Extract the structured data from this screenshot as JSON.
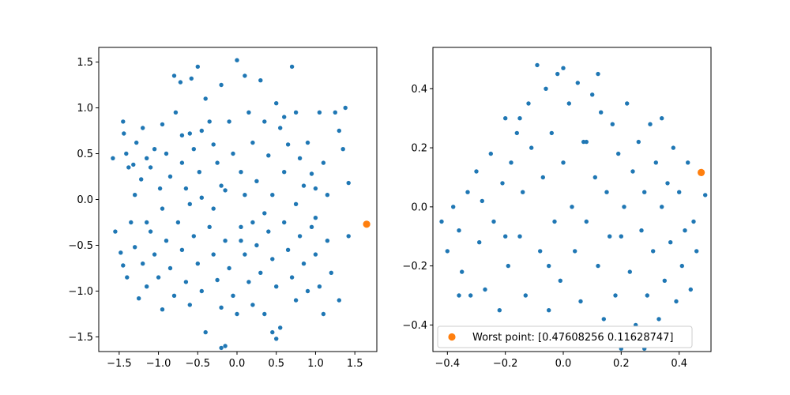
{
  "chart_data": [
    {
      "type": "scatter",
      "title": "",
      "xlabel": "",
      "ylabel": "",
      "xlim": [
        -1.76,
        1.78
      ],
      "ylim": [
        -1.66,
        1.66
      ],
      "xticks": [
        -1.5,
        -1.0,
        -0.5,
        0.0,
        0.5,
        1.0,
        1.5
      ],
      "yticks": [
        -1.5,
        -1.0,
        -0.5,
        0.0,
        0.5,
        1.0,
        1.5
      ],
      "xtick_labels": [
        "−1.5",
        "−1.0",
        "−0.5",
        "0.0",
        "0.5",
        "1.0",
        "1.5"
      ],
      "ytick_labels": [
        "−1.5",
        "−1.0",
        "−0.5",
        "0.0",
        "0.5",
        "1.0",
        "1.5"
      ],
      "series": [
        {
          "color": "#1f77b4",
          "marker_size": "small",
          "points": [
            [
              -1.58,
              0.45
            ],
            [
              -1.45,
              0.85
            ],
            [
              -1.44,
              0.72
            ],
            [
              -1.41,
              0.5
            ],
            [
              -1.38,
              0.35
            ],
            [
              -1.32,
              0.38
            ],
            [
              -1.3,
              0.05
            ],
            [
              -1.28,
              0.62
            ],
            [
              -1.22,
              0.22
            ],
            [
              -1.2,
              0.78
            ],
            [
              -1.15,
              0.45
            ],
            [
              -1.1,
              0.35
            ],
            [
              -1.05,
              0.55
            ],
            [
              -0.98,
              0.12
            ],
            [
              -0.95,
              0.82
            ],
            [
              -0.9,
              0.5
            ],
            [
              -0.85,
              0.25
            ],
            [
              -0.8,
              1.35
            ],
            [
              -0.78,
              0.95
            ],
            [
              -0.72,
              1.28
            ],
            [
              -0.7,
              0.4
            ],
            [
              -0.65,
              0.12
            ],
            [
              -0.6,
              0.72
            ],
            [
              -0.58,
              1.32
            ],
            [
              -0.55,
              0.55
            ],
            [
              -0.5,
              1.45
            ],
            [
              -0.48,
              0.3
            ],
            [
              -0.45,
              0.02
            ],
            [
              -0.4,
              1.1
            ],
            [
              -0.35,
              0.85
            ],
            [
              -0.3,
              0.6
            ],
            [
              -0.25,
              0.4
            ],
            [
              -0.2,
              1.25
            ],
            [
              -0.15,
              0.1
            ],
            [
              -0.1,
              0.85
            ],
            [
              -0.05,
              0.5
            ],
            [
              0.0,
              1.52
            ],
            [
              0.05,
              0.3
            ],
            [
              0.1,
              1.35
            ],
            [
              0.15,
              0.95
            ],
            [
              0.2,
              0.62
            ],
            [
              0.25,
              0.2
            ],
            [
              0.3,
              1.3
            ],
            [
              0.35,
              0.85
            ],
            [
              0.4,
              0.48
            ],
            [
              0.45,
              0.05
            ],
            [
              0.5,
              1.05
            ],
            [
              0.55,
              0.78
            ],
            [
              0.6,
              0.3
            ],
            [
              0.65,
              0.6
            ],
            [
              0.7,
              1.45
            ],
            [
              0.75,
              0.95
            ],
            [
              0.8,
              0.45
            ],
            [
              0.85,
              0.15
            ],
            [
              0.9,
              0.62
            ],
            [
              0.95,
              0.28
            ],
            [
              1.0,
              0.12
            ],
            [
              1.05,
              0.95
            ],
            [
              1.1,
              0.4
            ],
            [
              1.15,
              0.05
            ],
            [
              1.25,
              0.95
            ],
            [
              1.3,
              0.75
            ],
            [
              1.35,
              0.55
            ],
            [
              1.38,
              1.0
            ],
            [
              1.42,
              0.18
            ],
            [
              -1.55,
              -0.35
            ],
            [
              -1.48,
              -0.58
            ],
            [
              -1.45,
              -0.72
            ],
            [
              -1.4,
              -0.85
            ],
            [
              -1.35,
              -0.25
            ],
            [
              -1.3,
              -0.52
            ],
            [
              -1.25,
              -1.08
            ],
            [
              -1.2,
              -0.7
            ],
            [
              -1.15,
              -0.95
            ],
            [
              -1.1,
              -0.35
            ],
            [
              -1.05,
              -0.6
            ],
            [
              -1.0,
              -0.85
            ],
            [
              -0.95,
              -1.2
            ],
            [
              -0.9,
              -0.45
            ],
            [
              -0.85,
              -0.75
            ],
            [
              -0.8,
              -1.05
            ],
            [
              -0.75,
              -0.25
            ],
            [
              -0.7,
              -0.55
            ],
            [
              -0.65,
              -0.9
            ],
            [
              -0.6,
              -1.15
            ],
            [
              -0.55,
              -0.4
            ],
            [
              -0.5,
              -0.7
            ],
            [
              -0.45,
              -1.0
            ],
            [
              -0.4,
              -1.45
            ],
            [
              -0.35,
              -0.3
            ],
            [
              -0.3,
              -0.6
            ],
            [
              -0.25,
              -0.88
            ],
            [
              -0.2,
              -1.18
            ],
            [
              -0.15,
              -0.45
            ],
            [
              -0.1,
              -0.75
            ],
            [
              -0.05,
              -1.05
            ],
            [
              0.0,
              -1.25
            ],
            [
              0.05,
              -0.3
            ],
            [
              0.1,
              -0.6
            ],
            [
              0.15,
              -0.9
            ],
            [
              0.2,
              -1.15
            ],
            [
              0.25,
              -0.5
            ],
            [
              0.3,
              -0.8
            ],
            [
              0.35,
              -1.25
            ],
            [
              0.4,
              -0.35
            ],
            [
              0.45,
              -0.65
            ],
            [
              0.5,
              -0.95
            ],
            [
              0.55,
              -1.4
            ],
            [
              0.6,
              -0.25
            ],
            [
              0.65,
              -0.55
            ],
            [
              0.7,
              -0.85
            ],
            [
              0.75,
              -1.1
            ],
            [
              0.8,
              -0.4
            ],
            [
              0.85,
              -0.7
            ],
            [
              0.9,
              -1.0
            ],
            [
              0.95,
              -0.3
            ],
            [
              1.0,
              -0.6
            ],
            [
              1.05,
              -0.95
            ],
            [
              1.1,
              -1.25
            ],
            [
              1.15,
              -0.45
            ],
            [
              1.2,
              -0.8
            ],
            [
              1.3,
              -1.1
            ],
            [
              1.42,
              -0.4
            ],
            [
              -0.2,
              -1.62
            ],
            [
              -0.15,
              -1.6
            ],
            [
              0.45,
              -1.45
            ],
            [
              0.5,
              -1.52
            ],
            [
              0.1,
              0.05
            ],
            [
              -0.2,
              0.15
            ],
            [
              0.35,
              -0.15
            ],
            [
              -0.6,
              -0.05
            ],
            [
              0.75,
              -0.05
            ],
            [
              -0.95,
              -0.1
            ],
            [
              1.0,
              -0.2
            ],
            [
              -1.15,
              -0.25
            ],
            [
              -0.3,
              -0.1
            ],
            [
              0.2,
              -0.25
            ],
            [
              -0.45,
              0.75
            ],
            [
              0.6,
              0.9
            ],
            [
              -0.7,
              0.7
            ],
            [
              0.05,
              -0.45
            ]
          ]
        },
        {
          "color": "#ff7f0e",
          "marker_size": "large",
          "points": [
            [
              1.65,
              -0.27
            ]
          ]
        }
      ]
    },
    {
      "type": "scatter",
      "title": "",
      "xlabel": "",
      "ylabel": "",
      "xlim": [
        -0.45,
        0.51
      ],
      "ylim": [
        -0.49,
        0.54
      ],
      "xticks": [
        -0.4,
        -0.2,
        0.0,
        0.2,
        0.4
      ],
      "yticks": [
        -0.4,
        -0.2,
        0.0,
        0.2,
        0.4
      ],
      "xtick_labels": [
        "−0.4",
        "−0.2",
        "0.0",
        "0.2",
        "0.4"
      ],
      "ytick_labels": [
        "−0.4",
        "−0.2",
        "0.0",
        "0.2",
        "0.4"
      ],
      "legend_position": "lower-right",
      "legend": [
        {
          "label": "Worst point: [0.47608256 0.11628747]",
          "color": "#ff7f0e"
        }
      ],
      "series": [
        {
          "color": "#1f77b4",
          "marker_size": "small",
          "points": [
            [
              -0.42,
              -0.05
            ],
            [
              -0.4,
              -0.15
            ],
            [
              -0.38,
              0.0
            ],
            [
              -0.36,
              -0.08
            ],
            [
              -0.35,
              -0.22
            ],
            [
              -0.33,
              0.05
            ],
            [
              -0.32,
              -0.3
            ],
            [
              -0.3,
              0.12
            ],
            [
              -0.29,
              -0.12
            ],
            [
              -0.28,
              0.02
            ],
            [
              -0.27,
              -0.28
            ],
            [
              -0.25,
              0.18
            ],
            [
              -0.24,
              -0.05
            ],
            [
              -0.22,
              -0.35
            ],
            [
              -0.21,
              0.08
            ],
            [
              -0.2,
              0.3
            ],
            [
              -0.19,
              -0.2
            ],
            [
              -0.18,
              0.15
            ],
            [
              -0.17,
              -0.42
            ],
            [
              -0.16,
              0.25
            ],
            [
              -0.15,
              -0.1
            ],
            [
              -0.14,
              0.05
            ],
            [
              -0.13,
              -0.3
            ],
            [
              -0.12,
              0.35
            ],
            [
              -0.11,
              0.2
            ],
            [
              -0.1,
              -0.45
            ],
            [
              -0.09,
              0.48
            ],
            [
              -0.08,
              -0.15
            ],
            [
              -0.07,
              0.1
            ],
            [
              -0.06,
              0.4
            ],
            [
              -0.05,
              -0.35
            ],
            [
              -0.04,
              0.25
            ],
            [
              -0.03,
              -0.05
            ],
            [
              -0.02,
              0.45
            ],
            [
              -0.01,
              -0.25
            ],
            [
              0.0,
              0.15
            ],
            [
              0.01,
              -0.42
            ],
            [
              0.02,
              0.35
            ],
            [
              0.03,
              0.0
            ],
            [
              0.04,
              -0.15
            ],
            [
              0.05,
              0.42
            ],
            [
              0.06,
              -0.32
            ],
            [
              0.07,
              0.22
            ],
            [
              0.08,
              -0.05
            ],
            [
              0.09,
              -0.45
            ],
            [
              0.1,
              0.38
            ],
            [
              0.11,
              0.1
            ],
            [
              0.12,
              -0.2
            ],
            [
              0.13,
              0.32
            ],
            [
              0.14,
              -0.38
            ],
            [
              0.15,
              0.05
            ],
            [
              0.16,
              -0.1
            ],
            [
              0.17,
              0.28
            ],
            [
              0.18,
              -0.3
            ],
            [
              0.19,
              0.18
            ],
            [
              0.2,
              -0.48
            ],
            [
              0.21,
              0.0
            ],
            [
              0.22,
              0.35
            ],
            [
              0.23,
              -0.22
            ],
            [
              0.24,
              0.12
            ],
            [
              0.25,
              -0.4
            ],
            [
              0.26,
              0.22
            ],
            [
              0.27,
              -0.08
            ],
            [
              0.28,
              0.05
            ],
            [
              0.29,
              -0.3
            ],
            [
              0.3,
              0.28
            ],
            [
              0.31,
              -0.15
            ],
            [
              0.32,
              0.15
            ],
            [
              0.33,
              -0.38
            ],
            [
              0.34,
              0.0
            ],
            [
              0.35,
              -0.25
            ],
            [
              0.36,
              0.08
            ],
            [
              0.37,
              -0.12
            ],
            [
              0.38,
              0.2
            ],
            [
              0.39,
              -0.32
            ],
            [
              0.4,
              0.05
            ],
            [
              0.41,
              -0.2
            ],
            [
              0.42,
              -0.08
            ],
            [
              0.43,
              0.15
            ],
            [
              0.44,
              -0.28
            ],
            [
              0.45,
              -0.05
            ],
            [
              0.46,
              -0.15
            ],
            [
              0.49,
              0.04
            ],
            [
              -0.36,
              -0.3
            ],
            [
              -0.26,
              -0.42
            ],
            [
              -0.15,
              0.3
            ],
            [
              0.0,
              0.47
            ],
            [
              0.12,
              0.45
            ],
            [
              0.34,
              0.3
            ],
            [
              0.28,
              -0.48
            ],
            [
              -0.05,
              -0.2
            ],
            [
              0.08,
              0.22
            ],
            [
              0.2,
              -0.1
            ],
            [
              -0.2,
              -0.1
            ]
          ]
        },
        {
          "color": "#ff7f0e",
          "marker_size": "large",
          "points": [
            [
              0.47608256,
              0.11628747
            ]
          ]
        }
      ]
    }
  ]
}
